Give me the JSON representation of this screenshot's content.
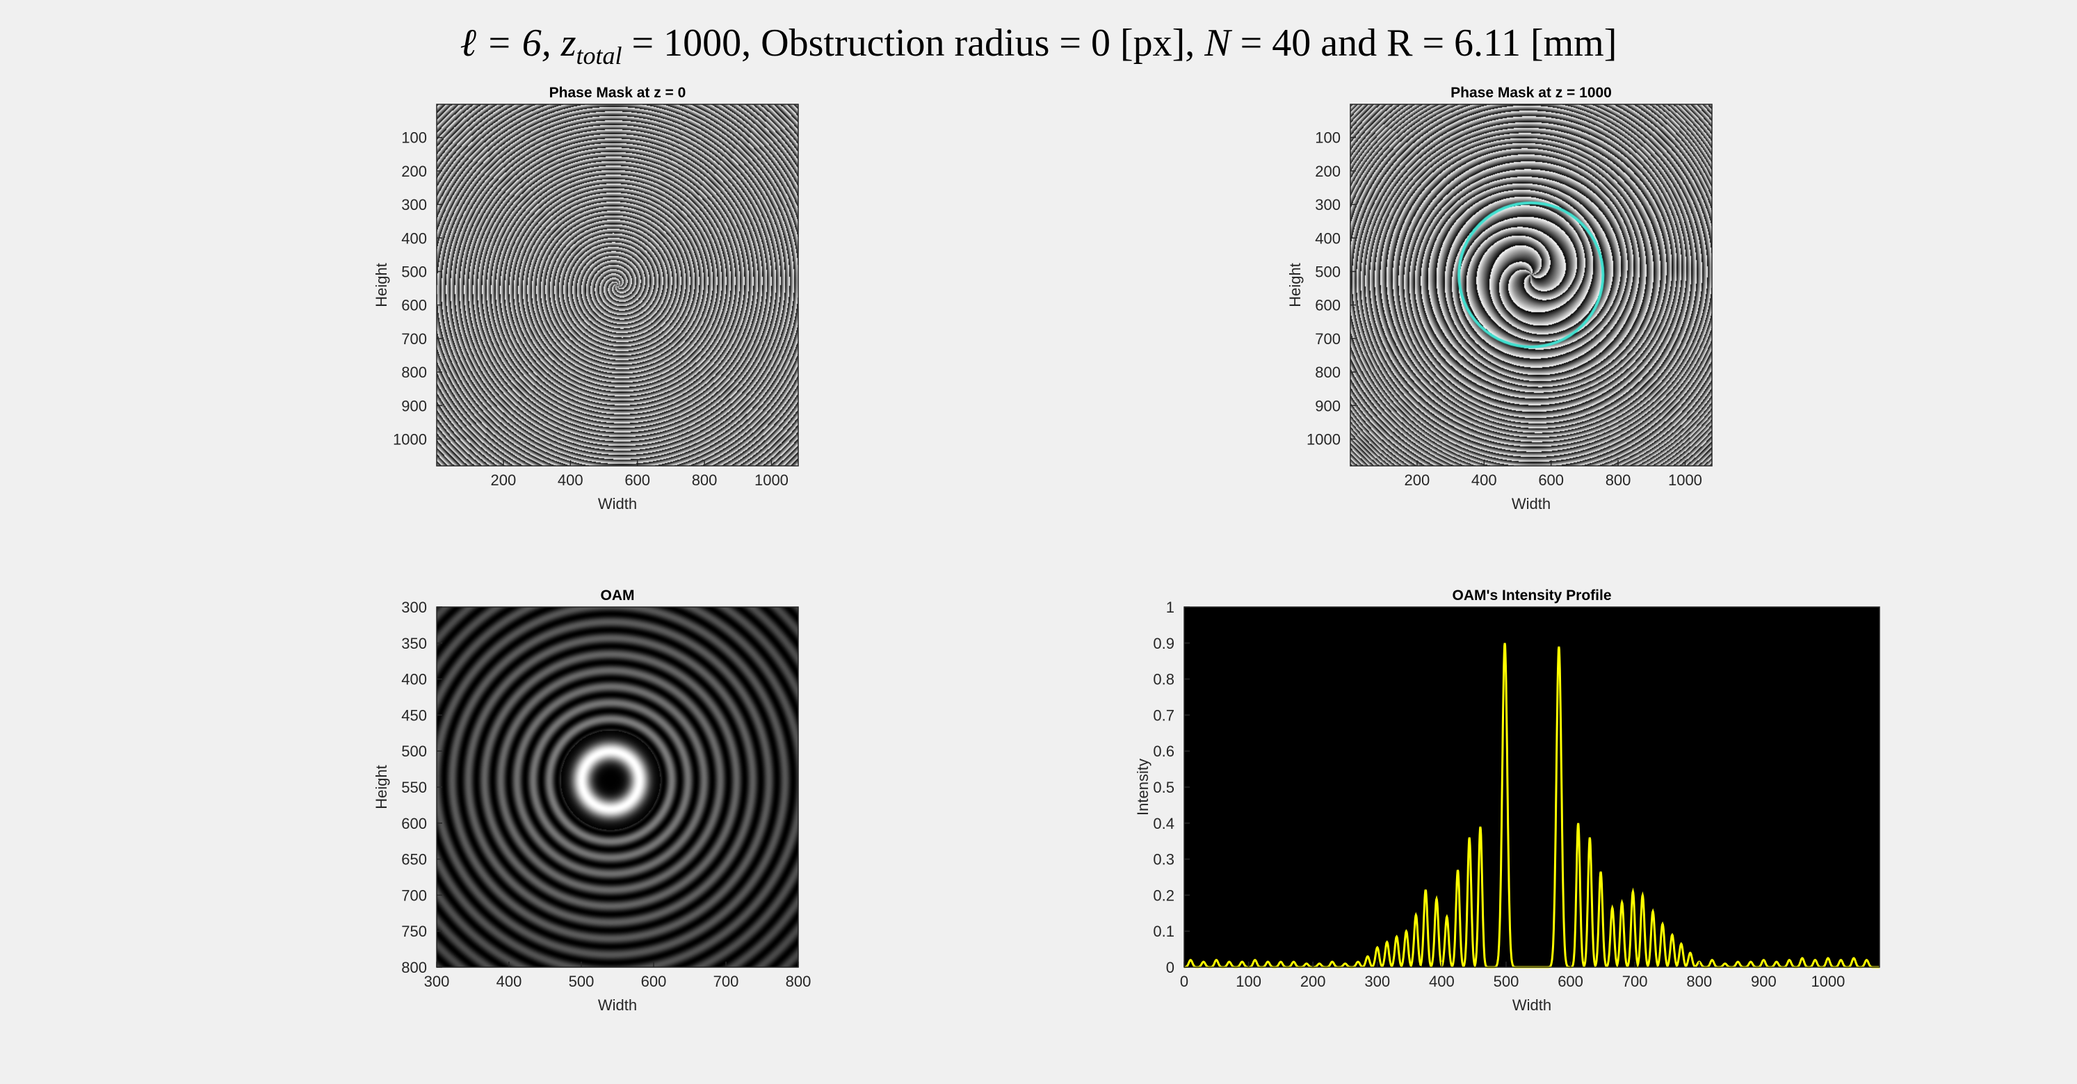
{
  "figure": {
    "title_parts": {
      "ell_label": "ℓ = 6,",
      "z_label": "z",
      "z_sub": "total",
      "z_value": "= 1000,",
      "obstruction": "Obstruction radius = 0 [px],",
      "n_label": "N",
      "n_value": "= 40 and R = 6.11 [mm]"
    }
  },
  "chart_data": [
    {
      "type": "heatmap",
      "title": "Phase Mask at z = 0",
      "xlabel": "Width",
      "ylabel": "Height",
      "xlim": [
        1,
        1080
      ],
      "ylim": [
        1,
        1080
      ],
      "xticks": [
        200,
        400,
        600,
        800,
        1000
      ],
      "yticks": [
        100,
        200,
        300,
        400,
        500,
        600,
        700,
        800,
        900,
        1000
      ],
      "colormap": "gray",
      "pattern": {
        "kind": "spiral phase",
        "charge": 6,
        "rings": 40
      }
    },
    {
      "type": "heatmap",
      "title": "Phase Mask at z = 1000",
      "xlabel": "Width",
      "ylabel": "Height",
      "xlim": [
        1,
        1080
      ],
      "ylim": [
        1,
        1080
      ],
      "xticks": [
        200,
        400,
        600,
        800,
        1000
      ],
      "yticks": [
        100,
        200,
        300,
        400,
        500,
        600,
        700,
        800,
        900,
        1000
      ],
      "colormap": "gray",
      "overlay_circle": {
        "center": [
          540,
          510
        ],
        "radius": 215,
        "color": "#40e0d0"
      }
    },
    {
      "type": "heatmap",
      "title": "OAM",
      "xlabel": "Width",
      "ylabel": "Height",
      "xlim": [
        300,
        800
      ],
      "ylim": [
        300,
        800
      ],
      "xticks": [
        300,
        400,
        500,
        600,
        700,
        800
      ],
      "yticks": [
        300,
        350,
        400,
        450,
        500,
        550,
        600,
        650,
        700,
        750,
        800
      ],
      "colormap": "gray",
      "ring": {
        "center": [
          540,
          540
        ],
        "radius": 40
      }
    },
    {
      "type": "line",
      "title": "OAM's Intensity Profile",
      "xlabel": "Width",
      "ylabel": "Intensity",
      "xlim": [
        0,
        1080
      ],
      "ylim": [
        0,
        1
      ],
      "xticks": [
        0,
        100,
        200,
        300,
        400,
        500,
        600,
        700,
        800,
        900,
        1000
      ],
      "yticks": [
        0,
        0.1,
        0.2,
        0.3,
        0.4,
        0.5,
        0.6,
        0.7,
        0.8,
        0.9,
        1
      ],
      "background": "#000000",
      "series": [
        {
          "color": "#ffff00",
          "peaks": [
            [
              10,
              0.02
            ],
            [
              30,
              0.015
            ],
            [
              50,
              0.02
            ],
            [
              70,
              0.015
            ],
            [
              90,
              0.015
            ],
            [
              110,
              0.02
            ],
            [
              130,
              0.015
            ],
            [
              150,
              0.015
            ],
            [
              170,
              0.015
            ],
            [
              190,
              0.01
            ],
            [
              210,
              0.01
            ],
            [
              230,
              0.015
            ],
            [
              250,
              0.01
            ],
            [
              270,
              0.015
            ],
            [
              285,
              0.03
            ],
            [
              300,
              0.055
            ],
            [
              315,
              0.07
            ],
            [
              330,
              0.085
            ],
            [
              345,
              0.1
            ],
            [
              360,
              0.145
            ],
            [
              375,
              0.215
            ],
            [
              392,
              0.19
            ],
            [
              408,
              0.14
            ],
            [
              425,
              0.27
            ],
            [
              443,
              0.36
            ],
            [
              460,
              0.39
            ],
            [
              498,
              0.9
            ],
            [
              582,
              0.89
            ],
            [
              612,
              0.4
            ],
            [
              630,
              0.36
            ],
            [
              647,
              0.265
            ],
            [
              665,
              0.165
            ],
            [
              680,
              0.18
            ],
            [
              697,
              0.21
            ],
            [
              712,
              0.2
            ],
            [
              728,
              0.155
            ],
            [
              743,
              0.12
            ],
            [
              758,
              0.09
            ],
            [
              772,
              0.065
            ],
            [
              786,
              0.04
            ],
            [
              800,
              0.015
            ],
            [
              820,
              0.02
            ],
            [
              840,
              0.01
            ],
            [
              860,
              0.015
            ],
            [
              880,
              0.015
            ],
            [
              900,
              0.02
            ],
            [
              920,
              0.015
            ],
            [
              940,
              0.02
            ],
            [
              960,
              0.025
            ],
            [
              980,
              0.02
            ],
            [
              1000,
              0.025
            ],
            [
              1020,
              0.02
            ],
            [
              1040,
              0.025
            ],
            [
              1060,
              0.02
            ]
          ]
        }
      ]
    }
  ]
}
